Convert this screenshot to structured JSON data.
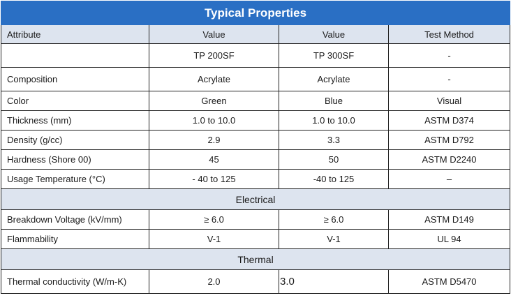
{
  "title": "Typical Properties",
  "header": {
    "attribute": "Attribute",
    "value1": "Value",
    "value2": "Value",
    "method": "Test Method"
  },
  "products": {
    "label": "",
    "a": "TP 200SF",
    "b": "TP 300SF",
    "method": "-"
  },
  "rows_general": [
    {
      "attr": "Composition",
      "a": "Acrylate",
      "b": "Acrylate",
      "method": "-"
    },
    {
      "attr": "Color",
      "a": "Green",
      "b": "Blue",
      "method": "Visual"
    },
    {
      "attr": "Thickness (mm)",
      "a": "1.0 to 10.0",
      "b": "1.0 to 10.0",
      "method": "ASTM D374"
    },
    {
      "attr": "Density (g/cc)",
      "a": "2.9",
      "b": "3.3",
      "method": "ASTM D792"
    },
    {
      "attr": "Hardness (Shore 00)",
      "a": "45",
      "b": "50",
      "method": "ASTM D2240"
    },
    {
      "attr": "Usage Temperature (°C)",
      "a": "- 40 to 125",
      "b": "-40 to 125",
      "method": "–"
    }
  ],
  "section_electrical": "Electrical",
  "rows_electrical": [
    {
      "attr": "Breakdown Voltage (kV/mm)",
      "a": "≥ 6.0",
      "b": "≥ 6.0",
      "method": "ASTM D149"
    },
    {
      "attr": "Flammability",
      "a": "V-1",
      "b": "V-1",
      "method": "UL 94"
    }
  ],
  "section_thermal": "Thermal",
  "rows_thermal": [
    {
      "attr": "Thermal conductivity (W/m-K)",
      "a": "2.0",
      "b": "3.0",
      "method": "ASTM D5470"
    }
  ]
}
